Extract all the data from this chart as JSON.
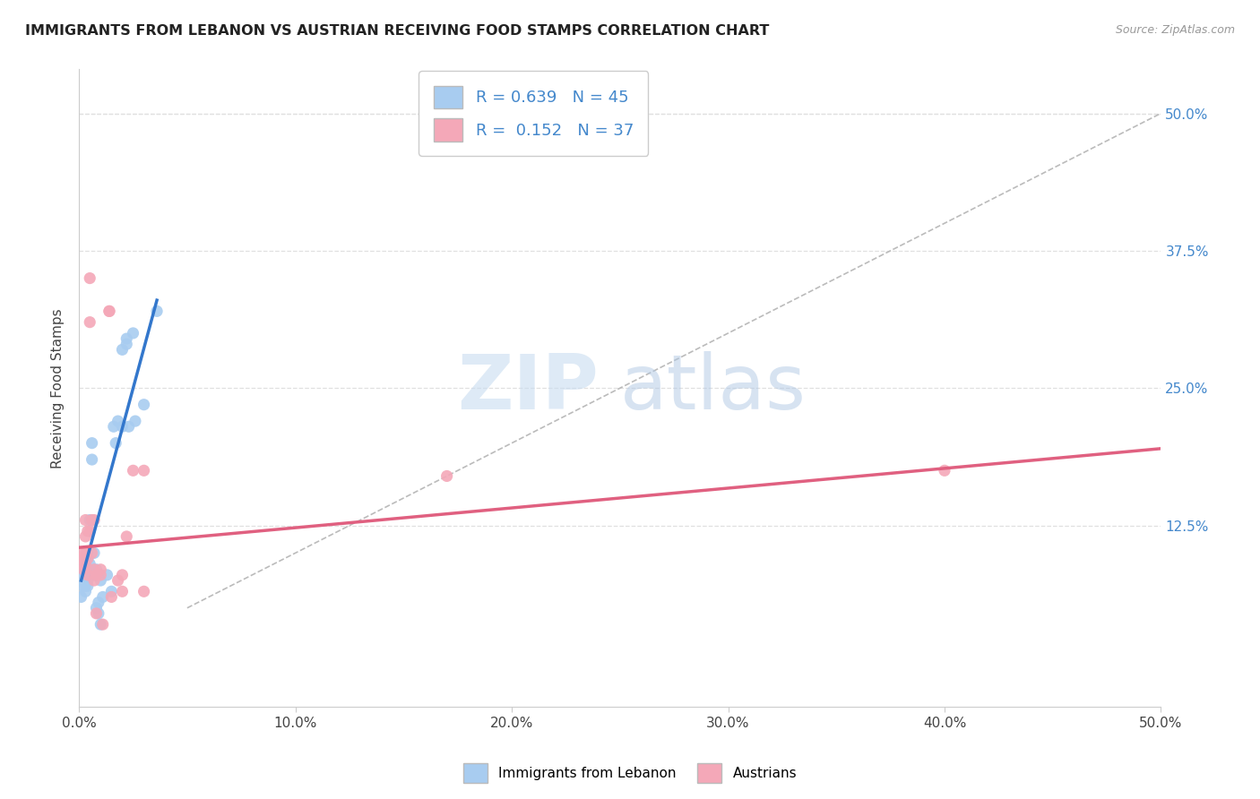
{
  "title": "IMMIGRANTS FROM LEBANON VS AUSTRIAN RECEIVING FOOD STAMPS CORRELATION CHART",
  "source": "Source: ZipAtlas.com",
  "ylabel": "Receiving Food Stamps",
  "legend_blue_r": "0.639",
  "legend_blue_n": "45",
  "legend_pink_r": "0.152",
  "legend_pink_n": "37",
  "legend_label_blue": "Immigrants from Lebanon",
  "legend_label_pink": "Austrians",
  "blue_color": "#A8CCF0",
  "pink_color": "#F4A8B8",
  "xlim": [
    0.0,
    0.5
  ],
  "ylim": [
    -0.04,
    0.54
  ],
  "xtick_vals": [
    0.0,
    0.1,
    0.2,
    0.3,
    0.4,
    0.5
  ],
  "ytick_vals": [
    0.0,
    0.125,
    0.25,
    0.375,
    0.5
  ],
  "blue_scatter": [
    [
      0.001,
      0.085
    ],
    [
      0.001,
      0.06
    ],
    [
      0.001,
      0.075
    ],
    [
      0.002,
      0.09
    ],
    [
      0.002,
      0.085
    ],
    [
      0.002,
      0.08
    ],
    [
      0.002,
      0.07
    ],
    [
      0.003,
      0.09
    ],
    [
      0.003,
      0.075
    ],
    [
      0.003,
      0.08
    ],
    [
      0.003,
      0.095
    ],
    [
      0.003,
      0.065
    ],
    [
      0.003,
      0.07
    ],
    [
      0.004,
      0.095
    ],
    [
      0.004,
      0.1
    ],
    [
      0.004,
      0.075
    ],
    [
      0.004,
      0.07
    ],
    [
      0.005,
      0.13
    ],
    [
      0.005,
      0.085
    ],
    [
      0.005,
      0.09
    ],
    [
      0.006,
      0.2
    ],
    [
      0.006,
      0.185
    ],
    [
      0.007,
      0.1
    ],
    [
      0.007,
      0.08
    ],
    [
      0.008,
      0.085
    ],
    [
      0.008,
      0.05
    ],
    [
      0.009,
      0.045
    ],
    [
      0.009,
      0.055
    ],
    [
      0.01,
      0.035
    ],
    [
      0.01,
      0.075
    ],
    [
      0.011,
      0.06
    ],
    [
      0.013,
      0.08
    ],
    [
      0.015,
      0.065
    ],
    [
      0.016,
      0.215
    ],
    [
      0.017,
      0.2
    ],
    [
      0.018,
      0.22
    ],
    [
      0.02,
      0.285
    ],
    [
      0.02,
      0.215
    ],
    [
      0.022,
      0.295
    ],
    [
      0.022,
      0.29
    ],
    [
      0.023,
      0.215
    ],
    [
      0.025,
      0.3
    ],
    [
      0.026,
      0.22
    ],
    [
      0.03,
      0.235
    ],
    [
      0.036,
      0.32
    ]
  ],
  "pink_scatter": [
    [
      0.001,
      0.095
    ],
    [
      0.001,
      0.09
    ],
    [
      0.002,
      0.1
    ],
    [
      0.002,
      0.085
    ],
    [
      0.002,
      0.095
    ],
    [
      0.003,
      0.09
    ],
    [
      0.003,
      0.13
    ],
    [
      0.003,
      0.115
    ],
    [
      0.003,
      0.1
    ],
    [
      0.004,
      0.08
    ],
    [
      0.004,
      0.095
    ],
    [
      0.004,
      0.12
    ],
    [
      0.005,
      0.35
    ],
    [
      0.005,
      0.31
    ],
    [
      0.005,
      0.12
    ],
    [
      0.006,
      0.13
    ],
    [
      0.006,
      0.1
    ],
    [
      0.007,
      0.13
    ],
    [
      0.007,
      0.075
    ],
    [
      0.007,
      0.085
    ],
    [
      0.008,
      0.08
    ],
    [
      0.008,
      0.045
    ],
    [
      0.01,
      0.08
    ],
    [
      0.01,
      0.085
    ],
    [
      0.011,
      0.035
    ],
    [
      0.014,
      0.32
    ],
    [
      0.014,
      0.32
    ],
    [
      0.015,
      0.06
    ],
    [
      0.018,
      0.075
    ],
    [
      0.02,
      0.065
    ],
    [
      0.02,
      0.08
    ],
    [
      0.022,
      0.115
    ],
    [
      0.025,
      0.175
    ],
    [
      0.03,
      0.175
    ],
    [
      0.03,
      0.065
    ],
    [
      0.17,
      0.17
    ],
    [
      0.4,
      0.175
    ]
  ],
  "blue_line_x": [
    0.001,
    0.036
  ],
  "blue_line_y": [
    0.075,
    0.33
  ],
  "pink_line_x": [
    0.0,
    0.5
  ],
  "pink_line_y": [
    0.105,
    0.195
  ],
  "diag_line_x": [
    0.05,
    0.5
  ],
  "diag_line_y": [
    0.05,
    0.5
  ],
  "watermark_zip": "ZIP",
  "watermark_atlas": "atlas",
  "background_color": "#FFFFFF",
  "grid_color": "#E0E0E0"
}
